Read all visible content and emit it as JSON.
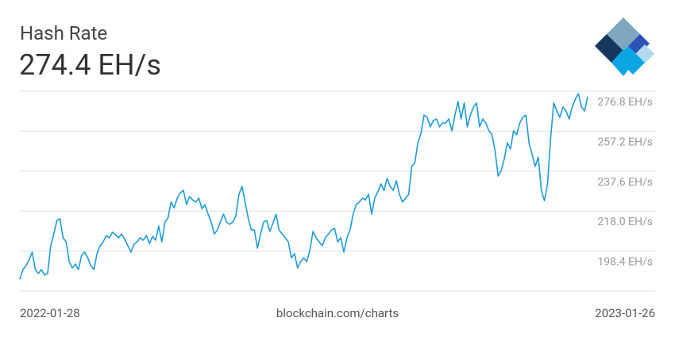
{
  "chart_data": {
    "type": "line",
    "title": "Hash Rate",
    "subtitle": "274.4 EH/s",
    "source": "blockchain.com/charts",
    "categories": [
      "2022-01-28",
      null,
      null,
      null,
      null,
      null,
      null,
      null,
      null,
      null,
      null,
      null,
      null,
      null,
      null,
      null,
      null,
      null,
      null,
      null,
      null,
      null,
      null,
      null,
      null,
      null,
      null,
      null,
      null,
      null,
      null,
      null,
      null,
      null,
      null,
      null,
      null,
      null,
      null,
      null,
      null,
      null,
      null,
      null,
      null,
      null,
      null,
      null,
      null,
      null,
      null,
      null,
      null,
      null,
      null,
      null,
      null,
      null,
      null,
      null,
      null,
      null,
      null,
      null,
      null,
      null,
      null,
      null,
      null,
      null,
      null,
      null,
      null,
      null,
      null,
      null,
      null,
      null,
      null,
      null,
      null,
      null,
      null,
      null,
      null,
      null,
      null,
      null,
      null,
      null,
      null,
      null,
      null,
      null,
      null,
      null,
      null,
      null,
      null,
      null,
      null,
      null,
      null,
      null,
      null,
      null,
      null,
      null,
      null,
      null,
      null,
      null,
      null,
      null,
      null,
      null,
      null,
      null,
      null,
      null,
      null,
      null,
      null,
      null,
      null,
      null,
      null,
      null,
      null,
      null,
      null,
      null,
      null,
      null,
      null,
      null,
      null,
      null,
      null,
      null,
      null,
      null,
      null,
      null,
      null,
      null,
      null,
      null,
      null,
      null,
      null,
      null,
      null,
      null,
      null,
      null,
      null,
      null,
      null,
      null,
      null,
      null,
      null,
      null,
      null,
      null,
      null,
      null,
      null,
      null,
      null,
      null,
      null,
      null,
      null,
      null,
      null,
      null,
      null,
      null,
      null,
      null,
      null,
      null,
      "2023-01-26"
    ],
    "series": [
      {
        "name": "Hash Rate",
        "color": "#1e9bd7",
        "values": [
          184.6,
          189.3,
          191.2,
          194.0,
          197.9,
          189.3,
          187.4,
          189.3,
          186.6,
          187.4,
          201.0,
          206.8,
          213.4,
          214.2,
          204.9,
          202.9,
          193.2,
          190.1,
          192.0,
          189.3,
          196.3,
          197.9,
          195.1,
          191.2,
          189.3,
          197.1,
          201.0,
          202.9,
          206.0,
          204.9,
          207.6,
          206.4,
          204.9,
          206.8,
          204.1,
          201.0,
          197.9,
          201.7,
          202.9,
          204.9,
          203.7,
          206.0,
          202.1,
          205.6,
          203.7,
          210.7,
          202.9,
          212.6,
          214.6,
          222.4,
          219.6,
          224.3,
          227.0,
          228.2,
          221.2,
          225.1,
          223.5,
          222.4,
          224.3,
          219.2,
          221.2,
          216.5,
          212.6,
          206.8,
          208.7,
          212.6,
          216.5,
          212.6,
          211.5,
          212.6,
          215.7,
          226.2,
          230.1,
          222.4,
          214.6,
          208.7,
          208.7,
          199.8,
          206.8,
          212.6,
          213.4,
          208.0,
          211.9,
          216.5,
          208.7,
          206.8,
          204.9,
          202.9,
          195.1,
          197.1,
          190.1,
          193.2,
          195.1,
          193.2,
          199.0,
          208.0,
          204.9,
          202.9,
          201.0,
          204.9,
          206.8,
          208.7,
          209.5,
          202.9,
          204.9,
          197.9,
          204.9,
          208.7,
          216.5,
          221.2,
          222.4,
          224.3,
          223.5,
          226.2,
          216.5,
          224.3,
          227.4,
          231.3,
          228.2,
          234.0,
          230.1,
          228.2,
          232.9,
          226.2,
          222.4,
          224.3,
          226.2,
          239.9,
          241.8,
          251.5,
          256.2,
          265.1,
          264.0,
          259.3,
          262.4,
          263.2,
          259.3,
          261.2,
          261.2,
          263.2,
          257.4,
          265.1,
          271.7,
          263.2,
          271.0,
          259.3,
          265.1,
          269.0,
          271.0,
          259.3,
          263.2,
          261.2,
          257.4,
          255.4,
          247.6,
          235.2,
          237.9,
          243.7,
          251.5,
          248.4,
          257.4,
          255.4,
          261.2,
          264.0,
          265.1,
          251.5,
          245.7,
          239.9,
          244.5,
          228.2,
          223.1,
          231.3,
          253.5,
          271.0,
          267.1,
          264.0,
          269.0,
          267.1,
          263.2,
          269.0,
          272.9,
          275.6,
          269.0,
          267.1,
          274.1
        ]
      }
    ],
    "ylim": [
      178.8,
      276.8
    ],
    "yticks": [
      {
        "value": 198.4,
        "label": "198.4 EH/s"
      },
      {
        "value": 218.0,
        "label": "218.0 EH/s"
      },
      {
        "value": 237.6,
        "label": "237.6 EH/s"
      },
      {
        "value": 257.2,
        "label": "257.2 EH/s"
      },
      {
        "value": 276.8,
        "label": "276.8 EH/s"
      }
    ],
    "grid": true
  }
}
